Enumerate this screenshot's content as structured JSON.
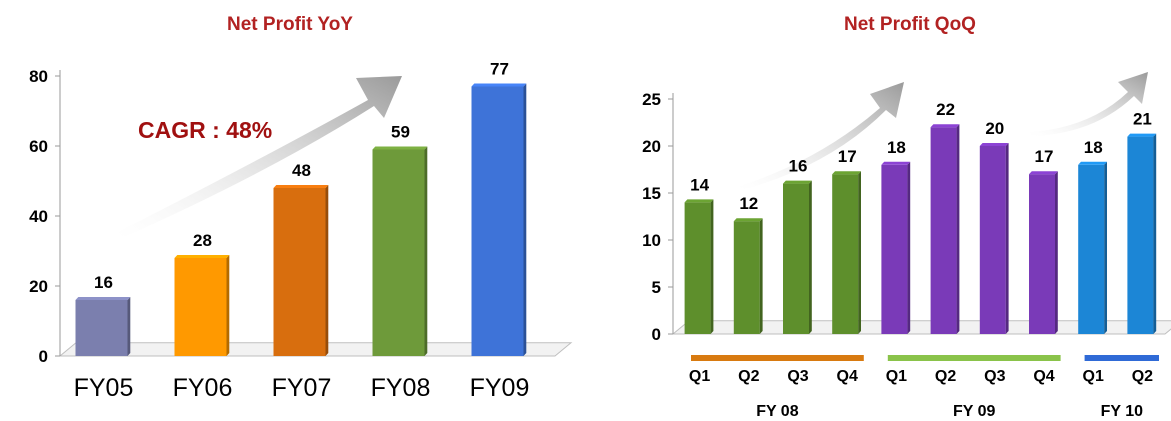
{
  "chart_data": [
    {
      "type": "bar",
      "title": "Net Profit YoY",
      "categories": [
        "FY05",
        "FY06",
        "FY07",
        "FY08",
        "FY09"
      ],
      "values": [
        16,
        28,
        48,
        59,
        77
      ],
      "value_labels": [
        "16",
        "28",
        "48",
        "59",
        "77"
      ],
      "yticks": [
        "0",
        "20",
        "40",
        "60",
        "80"
      ],
      "ylim": [
        0,
        80
      ],
      "grid": false,
      "annotation": "CAGR : 48%",
      "colors": [
        "#7b7fae",
        "#ff9900",
        "#d86e0e",
        "#6e9a3a",
        "#3e73d8"
      ]
    },
    {
      "type": "bar",
      "title": "Net Profit QoQ",
      "categories": [
        "Q1",
        "Q2",
        "Q3",
        "Q4",
        "Q1",
        "Q2",
        "Q3",
        "Q4",
        "Q1",
        "Q2"
      ],
      "values": [
        14,
        12,
        16,
        17,
        18,
        22,
        20,
        17,
        18,
        21
      ],
      "value_labels": [
        "14",
        "12",
        "16",
        "17",
        "18",
        "22",
        "20",
        "17",
        "18",
        "21"
      ],
      "groups": [
        {
          "label": "FY 08",
          "color": "#d87a10"
        },
        {
          "label": "FY 09",
          "color": "#8ac34a"
        },
        {
          "label": "FY 10",
          "color": "#2f6ad6"
        }
      ],
      "yticks": [
        "0",
        "5",
        "10",
        "15",
        "20",
        "25"
      ],
      "ylim": [
        0,
        25
      ],
      "grid": false,
      "colors": [
        "#5e8f2c",
        "#5e8f2c",
        "#5e8f2c",
        "#5e8f2c",
        "#7a3ab8",
        "#7a3ab8",
        "#7a3ab8",
        "#7a3ab8",
        "#1c86d6",
        "#1c86d6"
      ]
    }
  ]
}
